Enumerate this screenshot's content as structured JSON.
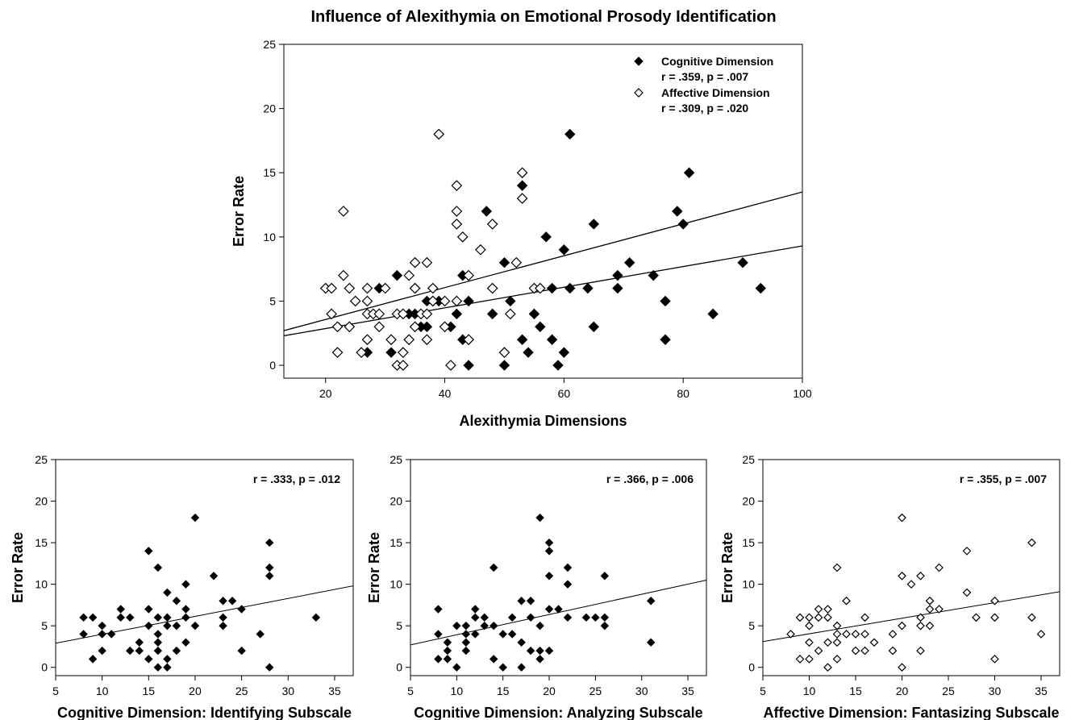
{
  "figure_title": "Influence of Alexithymia on Emotional Prosody Identification",
  "chart_data": [
    {
      "type": "scatter",
      "title": "Influence of Alexithymia on Emotional Prosody Identification",
      "xlabel": "Alexithymia Dimensions",
      "ylabel": "Error Rate",
      "xlim": [
        13,
        100
      ],
      "ylim": [
        -1,
        25
      ],
      "xticks": [
        20,
        40,
        60,
        80,
        100
      ],
      "yticks": [
        0,
        5,
        10,
        15,
        20,
        25
      ],
      "grid": false,
      "legend_position": "top-right",
      "series": [
        {
          "name": "Cognitive Dimension",
          "stat": "r = .359, p = .007",
          "marker": "filled-diamond",
          "fit_line": [
            [
              13,
              2.7
            ],
            [
              100,
              13.5
            ]
          ],
          "points": [
            [
              27,
              1
            ],
            [
              29,
              6
            ],
            [
              31,
              1
            ],
            [
              32,
              7
            ],
            [
              34,
              4
            ],
            [
              34,
              2
            ],
            [
              35,
              4
            ],
            [
              35,
              6
            ],
            [
              36,
              3
            ],
            [
              37,
              5
            ],
            [
              37,
              3
            ],
            [
              38,
              5
            ],
            [
              39,
              5
            ],
            [
              41,
              3
            ],
            [
              42,
              4
            ],
            [
              43,
              2
            ],
            [
              43,
              7
            ],
            [
              44,
              0
            ],
            [
              44,
              5
            ],
            [
              47,
              12
            ],
            [
              48,
              4
            ],
            [
              50,
              8
            ],
            [
              50,
              0
            ],
            [
              51,
              5
            ],
            [
              53,
              14
            ],
            [
              53,
              2
            ],
            [
              54,
              1
            ],
            [
              55,
              4
            ],
            [
              56,
              3
            ],
            [
              57,
              10
            ],
            [
              58,
              2
            ],
            [
              59,
              0
            ],
            [
              60,
              9
            ],
            [
              60,
              1
            ],
            [
              61,
              6
            ],
            [
              61,
              18
            ],
            [
              64,
              6
            ],
            [
              65,
              11
            ],
            [
              65,
              3
            ],
            [
              69,
              7
            ],
            [
              69,
              6
            ],
            [
              71,
              8
            ],
            [
              75,
              7
            ],
            [
              77,
              5
            ],
            [
              77,
              2
            ],
            [
              79,
              12
            ],
            [
              80,
              11
            ],
            [
              81,
              15
            ],
            [
              85,
              4
            ],
            [
              90,
              8
            ],
            [
              93,
              6
            ],
            [
              58,
              6
            ]
          ]
        },
        {
          "name": "Affective Dimension",
          "stat": "r = .309, p = .020",
          "marker": "open-diamond",
          "fit_line": [
            [
              13,
              2.3
            ],
            [
              100,
              9.3
            ]
          ],
          "points": [
            [
              20,
              6
            ],
            [
              21,
              6
            ],
            [
              21,
              4
            ],
            [
              22,
              3
            ],
            [
              22,
              1
            ],
            [
              23,
              12
            ],
            [
              23,
              7
            ],
            [
              24,
              6
            ],
            [
              24,
              3
            ],
            [
              25,
              5
            ],
            [
              26,
              1
            ],
            [
              27,
              6
            ],
            [
              27,
              5
            ],
            [
              27,
              4
            ],
            [
              27,
              2
            ],
            [
              28,
              4
            ],
            [
              29,
              4
            ],
            [
              29,
              3
            ],
            [
              30,
              6
            ],
            [
              31,
              2
            ],
            [
              32,
              0
            ],
            [
              32,
              4
            ],
            [
              33,
              4
            ],
            [
              33,
              1
            ],
            [
              33,
              0
            ],
            [
              34,
              2
            ],
            [
              34,
              7
            ],
            [
              35,
              8
            ],
            [
              35,
              3
            ],
            [
              35,
              6
            ],
            [
              36,
              4
            ],
            [
              37,
              8
            ],
            [
              37,
              2
            ],
            [
              37,
              4
            ],
            [
              38,
              6
            ],
            [
              39,
              18
            ],
            [
              40,
              5
            ],
            [
              40,
              3
            ],
            [
              41,
              0
            ],
            [
              42,
              14
            ],
            [
              42,
              12
            ],
            [
              42,
              11
            ],
            [
              42,
              5
            ],
            [
              43,
              10
            ],
            [
              44,
              7
            ],
            [
              44,
              2
            ],
            [
              46,
              9
            ],
            [
              48,
              11
            ],
            [
              48,
              6
            ],
            [
              50,
              1
            ],
            [
              51,
              4
            ],
            [
              52,
              8
            ],
            [
              53,
              15
            ],
            [
              53,
              13
            ],
            [
              55,
              6
            ],
            [
              56,
              6
            ],
            [
              38,
              5
            ]
          ]
        }
      ]
    },
    {
      "type": "scatter",
      "title": "",
      "xlabel": "Cognitive Dimension: Identifying Subscale",
      "ylabel": "Error Rate",
      "stat": "r = .333, p = .012",
      "xlim": [
        5,
        37
      ],
      "ylim": [
        -1,
        25
      ],
      "xticks": [
        5,
        10,
        15,
        20,
        25,
        30,
        35
      ],
      "yticks": [
        0,
        5,
        10,
        15,
        20,
        25
      ],
      "marker": "filled-diamond",
      "fit_line": [
        [
          5,
          2.9
        ],
        [
          37,
          9.8
        ]
      ],
      "points": [
        [
          8,
          6
        ],
        [
          8,
          4
        ],
        [
          9,
          6
        ],
        [
          9,
          1
        ],
        [
          10,
          5
        ],
        [
          10,
          2
        ],
        [
          10,
          4
        ],
        [
          11,
          4
        ],
        [
          12,
          7
        ],
        [
          12,
          6
        ],
        [
          13,
          6
        ],
        [
          13,
          2
        ],
        [
          14,
          3
        ],
        [
          14,
          2
        ],
        [
          15,
          14
        ],
        [
          15,
          7
        ],
        [
          15,
          5
        ],
        [
          15,
          1
        ],
        [
          16,
          12
        ],
        [
          16,
          6
        ],
        [
          16,
          4
        ],
        [
          16,
          3
        ],
        [
          16,
          2
        ],
        [
          16,
          0
        ],
        [
          17,
          9
        ],
        [
          17,
          6
        ],
        [
          17,
          5
        ],
        [
          17,
          1
        ],
        [
          17,
          0
        ],
        [
          18,
          8
        ],
        [
          18,
          5
        ],
        [
          18,
          2
        ],
        [
          19,
          10
        ],
        [
          19,
          7
        ],
        [
          19,
          6
        ],
        [
          19,
          3
        ],
        [
          20,
          18
        ],
        [
          20,
          5
        ],
        [
          22,
          11
        ],
        [
          23,
          8
        ],
        [
          23,
          6
        ],
        [
          23,
          5
        ],
        [
          24,
          8
        ],
        [
          25,
          7
        ],
        [
          25,
          2
        ],
        [
          27,
          4
        ],
        [
          28,
          15
        ],
        [
          28,
          12
        ],
        [
          28,
          11
        ],
        [
          28,
          0
        ],
        [
          33,
          6
        ]
      ]
    },
    {
      "type": "scatter",
      "title": "",
      "xlabel": "Cognitive Dimension: Analyzing Subscale",
      "ylabel": "Error Rate",
      "stat": "r = .366, p = .006",
      "xlim": [
        5,
        37
      ],
      "ylim": [
        -1,
        25
      ],
      "xticks": [
        5,
        10,
        15,
        20,
        25,
        30,
        35
      ],
      "yticks": [
        0,
        5,
        10,
        15,
        20,
        25
      ],
      "marker": "filled-diamond",
      "fit_line": [
        [
          5,
          2.7
        ],
        [
          37,
          10.5
        ]
      ],
      "points": [
        [
          8,
          7
        ],
        [
          8,
          4
        ],
        [
          8,
          1
        ],
        [
          9,
          3
        ],
        [
          9,
          2
        ],
        [
          9,
          1
        ],
        [
          10,
          5
        ],
        [
          10,
          0
        ],
        [
          11,
          5
        ],
        [
          11,
          4
        ],
        [
          11,
          3
        ],
        [
          11,
          2
        ],
        [
          12,
          7
        ],
        [
          12,
          6
        ],
        [
          12,
          4
        ],
        [
          13,
          6
        ],
        [
          13,
          5
        ],
        [
          14,
          12
        ],
        [
          14,
          5
        ],
        [
          14,
          1
        ],
        [
          15,
          4
        ],
        [
          15,
          0
        ],
        [
          16,
          6
        ],
        [
          16,
          4
        ],
        [
          17,
          8
        ],
        [
          17,
          3
        ],
        [
          17,
          0
        ],
        [
          18,
          8
        ],
        [
          18,
          6
        ],
        [
          18,
          2
        ],
        [
          19,
          18
        ],
        [
          19,
          5
        ],
        [
          19,
          2
        ],
        [
          19,
          1
        ],
        [
          20,
          15
        ],
        [
          20,
          14
        ],
        [
          20,
          11
        ],
        [
          20,
          7
        ],
        [
          20,
          2
        ],
        [
          21,
          7
        ],
        [
          22,
          12
        ],
        [
          22,
          10
        ],
        [
          22,
          6
        ],
        [
          24,
          6
        ],
        [
          25,
          6
        ],
        [
          26,
          11
        ],
        [
          26,
          6
        ],
        [
          26,
          5
        ],
        [
          31,
          8
        ],
        [
          31,
          3
        ]
      ]
    },
    {
      "type": "scatter",
      "title": "",
      "xlabel": "Affective Dimension: Fantasizing Subscale",
      "ylabel": "Error Rate",
      "stat": "r = .355, p = .007",
      "xlim": [
        5,
        37
      ],
      "ylim": [
        -1,
        25
      ],
      "xticks": [
        5,
        10,
        15,
        20,
        25,
        30,
        35
      ],
      "yticks": [
        0,
        5,
        10,
        15,
        20,
        25
      ],
      "marker": "open-diamond",
      "fit_line": [
        [
          5,
          3.1
        ],
        [
          37,
          9.1
        ]
      ],
      "points": [
        [
          8,
          4
        ],
        [
          9,
          6
        ],
        [
          9,
          1
        ],
        [
          10,
          6
        ],
        [
          10,
          5
        ],
        [
          10,
          3
        ],
        [
          10,
          1
        ],
        [
          11,
          7
        ],
        [
          11,
          6
        ],
        [
          11,
          2
        ],
        [
          12,
          7
        ],
        [
          12,
          6
        ],
        [
          12,
          3
        ],
        [
          12,
          0
        ],
        [
          13,
          12
        ],
        [
          13,
          5
        ],
        [
          13,
          4
        ],
        [
          13,
          3
        ],
        [
          13,
          1
        ],
        [
          14,
          8
        ],
        [
          14,
          4
        ],
        [
          15,
          4
        ],
        [
          15,
          2
        ],
        [
          16,
          6
        ],
        [
          16,
          4
        ],
        [
          16,
          2
        ],
        [
          17,
          3
        ],
        [
          19,
          4
        ],
        [
          19,
          2
        ],
        [
          20,
          18
        ],
        [
          20,
          11
        ],
        [
          20,
          5
        ],
        [
          20,
          0
        ],
        [
          21,
          10
        ],
        [
          22,
          11
        ],
        [
          22,
          6
        ],
        [
          22,
          5
        ],
        [
          22,
          2
        ],
        [
          23,
          8
        ],
        [
          23,
          7
        ],
        [
          23,
          5
        ],
        [
          24,
          12
        ],
        [
          24,
          7
        ],
        [
          27,
          14
        ],
        [
          27,
          9
        ],
        [
          28,
          6
        ],
        [
          30,
          8
        ],
        [
          30,
          6
        ],
        [
          30,
          1
        ],
        [
          34,
          15
        ],
        [
          34,
          6
        ],
        [
          35,
          4
        ]
      ]
    }
  ]
}
